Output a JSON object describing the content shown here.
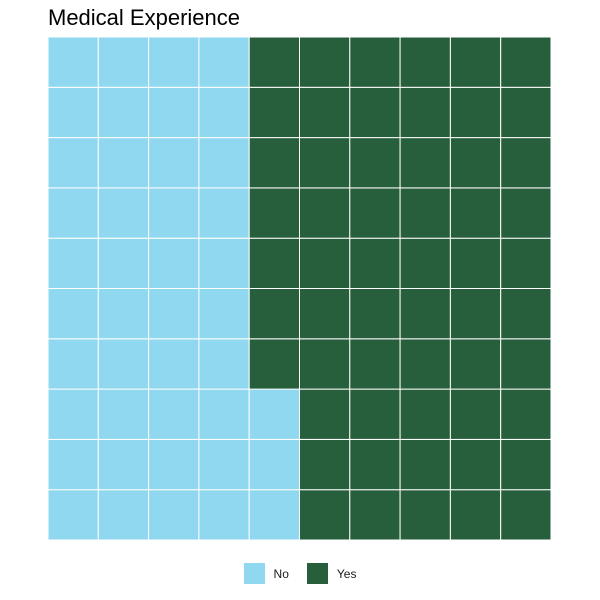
{
  "chart_data": {
    "type": "waffle",
    "title": "Medical Experience",
    "grid": {
      "rows": 10,
      "cols": 10
    },
    "fill_order": "column-major, bottom-to-top, left-to-right",
    "categories": [
      "No",
      "Yes"
    ],
    "values": [
      43,
      57
    ],
    "colors": {
      "No": "#8FD8F0",
      "Yes": "#275E3B"
    },
    "legend_position": "bottom",
    "grid_line_color": "#ffffff"
  }
}
